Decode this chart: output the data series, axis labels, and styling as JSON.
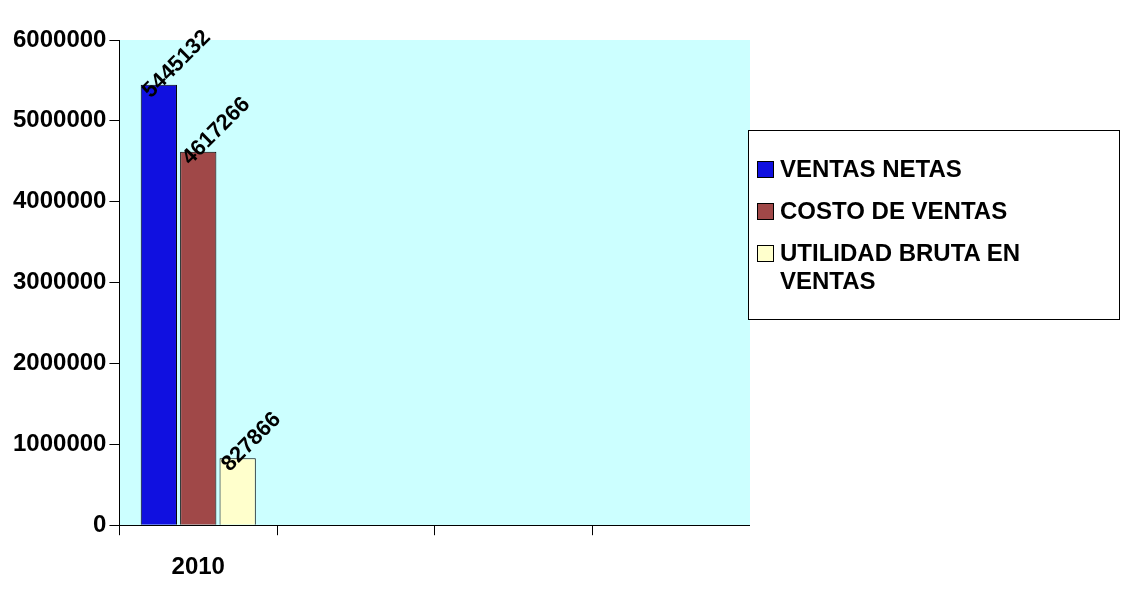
{
  "chart_data": {
    "type": "bar",
    "categories": [
      "2010",
      null,
      null,
      null
    ],
    "series": [
      {
        "name": "VENTAS NETAS",
        "color": "#1010e0",
        "values": [
          5445132,
          null,
          null,
          null
        ]
      },
      {
        "name": "COSTO DE VENTAS",
        "color": "#a04848",
        "values": [
          4617266,
          null,
          null,
          null
        ]
      },
      {
        "name": "UTILIDAD BRUTA EN VENTAS",
        "color": "#ffffcc",
        "values": [
          827866,
          null,
          null,
          null
        ]
      }
    ],
    "ylim": [
      0,
      6000000
    ],
    "yticks": [
      0,
      1000000,
      2000000,
      3000000,
      4000000,
      5000000,
      6000000
    ],
    "grid": false,
    "legend": "right",
    "data_labels": true
  }
}
